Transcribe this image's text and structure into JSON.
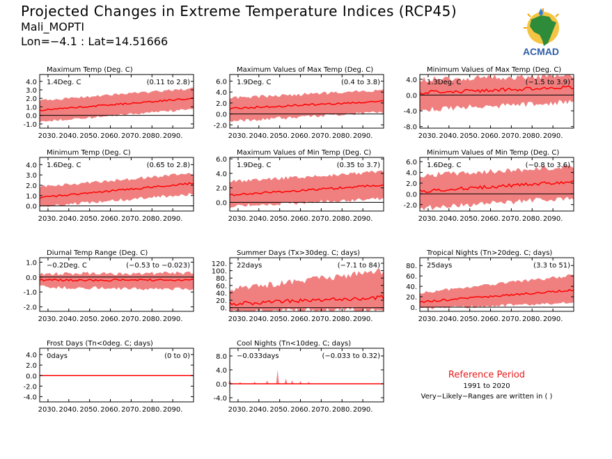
{
  "header": {
    "title": "Projected Changes in Extreme Temperature Indices (RCP45)",
    "station": "Mali_MOPTI",
    "coords": "Lon=−4.1 : Lat=14.51666"
  },
  "logo": {
    "text": "ACMAD",
    "icon": "africa-map-logo"
  },
  "reference": {
    "title": "Reference Period",
    "years": "1991 to 2020",
    "note": "Very−Likely−Ranges are written in ( )"
  },
  "colors": {
    "band": "#f08080",
    "line": "#ff0000",
    "zero": "#000000",
    "ref_title": "#e8191b"
  },
  "chart_data": [
    {
      "type": "area",
      "title": "Maximum Temp (Deg. C)",
      "stat": "1.4Deg. C",
      "range": "(0.11 to 2.8)",
      "xticks": [
        "2030.",
        "2040.",
        "2050.",
        "2060.",
        "2070.",
        "2080.",
        "2090."
      ],
      "ylim": [
        -1.5,
        4.8
      ],
      "yticks": [
        "-1.0",
        "0.0",
        "1.0",
        "2.0",
        "3.0",
        "4.0"
      ],
      "ytick_values": [
        -1,
        0,
        1,
        2,
        3,
        4
      ],
      "x_range": [
        2026,
        2100
      ],
      "median_start": 0.6,
      "median_end": 2.0,
      "band_low_start": -0.6,
      "band_low_end": 0.9,
      "band_high_start": 1.6,
      "band_high_end": 3.0,
      "noise": 0.3
    },
    {
      "type": "area",
      "title": "Maximum Values of Max Temp (Deg. C)",
      "stat": "1.9Deg. C",
      "range": "(0.4 to 3.8)",
      "xticks": [
        "2030.",
        "2040.",
        "2050.",
        "2060.",
        "2070.",
        "2080.",
        "2090."
      ],
      "ylim": [
        -2.6,
        7.2
      ],
      "yticks": [
        "-2.0",
        "0.0",
        "2.0",
        "4.0",
        "6.0"
      ],
      "ytick_values": [
        -2,
        0,
        2,
        4,
        6
      ],
      "x_range": [
        2026,
        2100
      ],
      "median_start": 1.0,
      "median_end": 2.3,
      "band_low_start": -1.0,
      "band_low_end": 0.6,
      "band_high_start": 2.6,
      "band_high_end": 4.0,
      "noise": 0.6
    },
    {
      "type": "area",
      "title": "Minimum Values of Max Temp (Deg. C)",
      "stat": "1.3Deg. C",
      "range": "(−1.5 to 3.9)",
      "xticks": [
        "2030.",
        "2040.",
        "2050.",
        "2060.",
        "2070.",
        "2080.",
        "2090."
      ],
      "ylim": [
        -8.4,
        5.2
      ],
      "yticks": [
        "-8.0",
        "-4.0",
        "0.0",
        "4.0"
      ],
      "ytick_values": [
        -8,
        -4,
        0,
        4
      ],
      "x_range": [
        2026,
        2100
      ],
      "median_start": 0.6,
      "median_end": 2.0,
      "band_low_start": -3.0,
      "band_low_end": -1.0,
      "band_high_start": 3.2,
      "band_high_end": 4.2,
      "noise": 1.5
    },
    {
      "type": "area",
      "title": "Minimum Temp (Deg. C)",
      "stat": "1.6Deg. C",
      "range": "(0.65 to 2.8)",
      "xticks": [
        "2030.",
        "2040.",
        "2050.",
        "2060.",
        "2070.",
        "2080.",
        "2090."
      ],
      "ylim": [
        -0.5,
        4.7
      ],
      "yticks": [
        "0.0",
        "1.0",
        "2.0",
        "3.0",
        "4.0"
      ],
      "ytick_values": [
        0,
        1,
        2,
        3,
        4
      ],
      "x_range": [
        2026,
        2100
      ],
      "median_start": 0.8,
      "median_end": 2.2,
      "band_low_start": 0.1,
      "band_low_end": 1.3,
      "band_high_start": 1.7,
      "band_high_end": 3.0,
      "noise": 0.3
    },
    {
      "type": "area",
      "title": "Maximum Values of Min Temp (Deg. C)",
      "stat": "1.9Deg. C",
      "range": "(0.35 to 3.7)",
      "xticks": [
        "2030.",
        "2040.",
        "2050.",
        "2060.",
        "2070.",
        "2080.",
        "2090."
      ],
      "ylim": [
        -1.2,
        6.2
      ],
      "yticks": [
        "0.0",
        "2.0",
        "4.0",
        "6.0"
      ],
      "ytick_values": [
        0,
        2,
        4,
        6
      ],
      "x_range": [
        2026,
        2100
      ],
      "median_start": 1.0,
      "median_end": 2.4,
      "band_low_start": -0.3,
      "band_low_end": 0.8,
      "band_high_start": 2.6,
      "band_high_end": 4.0,
      "noise": 0.5
    },
    {
      "type": "area",
      "title": "Minimum Values of Min Temp (Deg. C)",
      "stat": "1.6Deg. C",
      "range": "(−0.8 to 3.6)",
      "xticks": [
        "2030.",
        "2040.",
        "2050.",
        "2060.",
        "2070.",
        "2080.",
        "2090."
      ],
      "ylim": [
        -3.2,
        6.8
      ],
      "yticks": [
        "-2.0",
        "0.0",
        "2.0",
        "4.0",
        "6.0"
      ],
      "ytick_values": [
        -2,
        0,
        2,
        4,
        6
      ],
      "x_range": [
        2026,
        2100
      ],
      "median_start": 0.5,
      "median_end": 2.3,
      "band_low_start": -2.2,
      "band_low_end": -0.2,
      "band_high_start": 3.0,
      "band_high_end": 4.5,
      "noise": 1.0
    },
    {
      "type": "area",
      "title": "Diurnal Temp Range (Deg. C)",
      "stat": "−0.2Deg. C",
      "range": "(−0.53 to −0.023)",
      "xticks": [
        "2030.",
        "2040.",
        "2050.",
        "2060.",
        "2070.",
        "2080.",
        "2090."
      ],
      "ylim": [
        -2.3,
        1.3
      ],
      "yticks": [
        "-2.0",
        "-1.0",
        "0.0",
        "1.0"
      ],
      "ytick_values": [
        -2,
        -1,
        0,
        1
      ],
      "x_range": [
        2026,
        2100
      ],
      "median_start": -0.2,
      "median_end": -0.2,
      "band_low_start": -0.55,
      "band_low_end": -0.7,
      "band_high_start": 0.1,
      "band_high_end": 0.15,
      "noise": 0.25
    },
    {
      "type": "area",
      "title": "Summer Days (Tx>30deg. C; days)",
      "stat": "22days",
      "range": "(−7.1 to 84)",
      "xticks": [
        "2030.",
        "2040.",
        "2050.",
        "2060.",
        "2070.",
        "2080.",
        "2090."
      ],
      "ylim": [
        -10,
        135
      ],
      "yticks": [
        "0.",
        "20.",
        "40.",
        "60.",
        "80.",
        "100.",
        "120."
      ],
      "ytick_values": [
        0,
        20,
        40,
        60,
        80,
        100,
        120
      ],
      "x_range": [
        2026,
        2100
      ],
      "median_start": 10,
      "median_end": 28,
      "band_low_start": -4,
      "band_low_end": 5,
      "band_high_start": 40,
      "band_high_end": 90,
      "noise": 18
    },
    {
      "type": "area",
      "title": "Tropical Nights (Tn>20deg. C; days)",
      "stat": "25days",
      "range": "(3.3 to 51)",
      "xticks": [
        "2030.",
        "2040.",
        "2050.",
        "2060.",
        "2070.",
        "2080.",
        "2090."
      ],
      "ylim": [
        -8,
        95
      ],
      "yticks": [
        "0.",
        "20.",
        "40.",
        "60.",
        "80."
      ],
      "ytick_values": [
        0,
        20,
        40,
        60,
        80
      ],
      "x_range": [
        2026,
        2100
      ],
      "median_start": 10,
      "median_end": 33,
      "band_low_start": 0,
      "band_low_end": 12,
      "band_high_start": 25,
      "band_high_end": 58,
      "noise": 6
    },
    {
      "type": "area",
      "title": "Frost Days (Tn<0deg. C; days)",
      "stat": "0days",
      "range": "(0 to 0)",
      "xticks": [
        "2030.",
        "2040.",
        "2050.",
        "2060.",
        "2070.",
        "2080.",
        "2090."
      ],
      "ylim": [
        -5,
        5.2
      ],
      "yticks": [
        "-4.0",
        "-2.0",
        "0.0",
        "2.0",
        "4.0"
      ],
      "ytick_values": [
        -4,
        -2,
        0,
        2,
        4
      ],
      "x_range": [
        2026,
        2100
      ],
      "median_start": 0,
      "median_end": 0,
      "band_low_start": 0,
      "band_low_end": 0,
      "band_high_start": 0,
      "band_high_end": 0,
      "noise": 0
    },
    {
      "type": "area",
      "title": "Cool Nights (Tn<10deg. C; days)",
      "stat": "−0.033days",
      "range": "(−0.033 to 0.32)",
      "xticks": [
        "2030.",
        "2040.",
        "2050.",
        "2060.",
        "2070.",
        "2080.",
        "2090."
      ],
      "ylim": [
        -5.2,
        10.2
      ],
      "yticks": [
        "-4.0",
        "0.0",
        "4.0",
        "8.0"
      ],
      "ytick_values": [
        -4,
        0,
        4,
        8
      ],
      "x_range": [
        2026,
        2100
      ],
      "median_start": 0,
      "median_end": 0,
      "band_low_start": 0,
      "band_low_end": 0,
      "band_high_start": 0,
      "band_high_end": 0,
      "noise": 0,
      "spikes": [
        [
          2026,
          1.2
        ],
        [
          2031,
          0.5
        ],
        [
          2038,
          0.6
        ],
        [
          2044,
          1.0
        ],
        [
          2049,
          4.0
        ],
        [
          2053,
          1.5
        ],
        [
          2056,
          1.0
        ],
        [
          2060,
          0.8
        ],
        [
          2064,
          0.6
        ]
      ]
    }
  ]
}
